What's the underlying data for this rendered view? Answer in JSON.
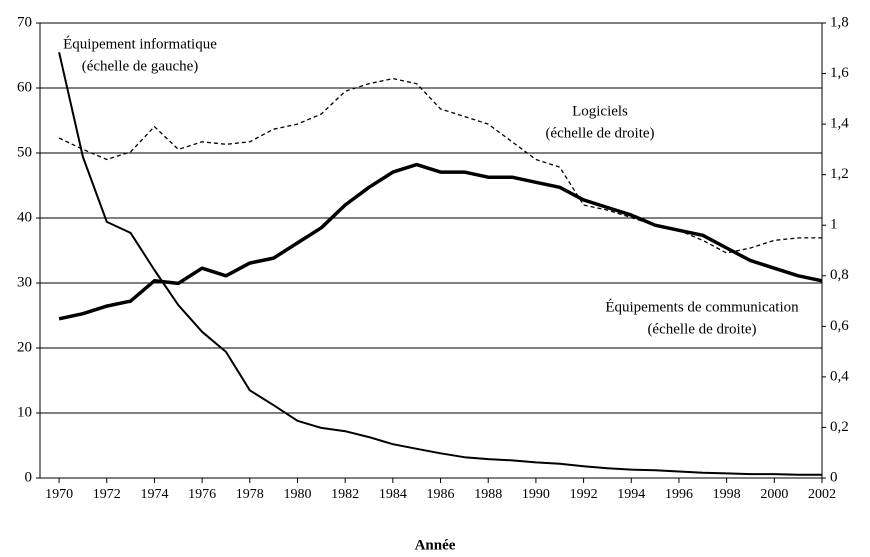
{
  "chart_data": {
    "type": "line",
    "x_label": "Année",
    "x": [
      1970,
      1971,
      1972,
      1973,
      1974,
      1975,
      1976,
      1977,
      1978,
      1979,
      1980,
      1981,
      1982,
      1983,
      1984,
      1985,
      1986,
      1987,
      1988,
      1989,
      1990,
      1991,
      1992,
      1993,
      1994,
      1995,
      1996,
      1997,
      1998,
      1999,
      2000,
      2001,
      2002
    ],
    "xlim": [
      1969.2,
      2002
    ],
    "xticks": [
      1970,
      1972,
      1974,
      1976,
      1978,
      1980,
      1982,
      1984,
      1986,
      1988,
      1990,
      1992,
      1994,
      1996,
      1998,
      2000,
      2002
    ],
    "ylim": [
      0,
      70
    ],
    "yticks": [
      0,
      10,
      20,
      30,
      40,
      50,
      60,
      70
    ],
    "y2lim": [
      0,
      1.8
    ],
    "y2ticks": [
      0,
      {
        "value": 0.2,
        "label": "0,2"
      },
      {
        "value": 0.4,
        "label": "0,4"
      },
      {
        "value": 0.6,
        "label": "0,6"
      },
      {
        "value": 0.8,
        "label": "0,8"
      },
      1,
      {
        "value": 1.2,
        "label": "1,2"
      },
      {
        "value": 1.4,
        "label": "1,4"
      },
      {
        "value": 1.6,
        "label": "1,6"
      },
      {
        "value": 1.8,
        "label": "1,8"
      }
    ],
    "grid": true,
    "series": [
      {
        "name": "Équipement informatique",
        "note": "(échelle de gauche)",
        "color": "#000000",
        "style": "solid",
        "values": [
          65.5,
          49.4,
          39.4,
          37.7,
          32,
          26.6,
          22.5,
          19.4,
          13.5,
          11.2,
          8.8,
          7.7,
          7.2,
          6.3,
          5.2,
          4.5,
          3.8,
          3.2,
          2.9,
          2.7,
          2.4,
          2.2,
          1.8,
          1.5,
          1.3,
          1.2,
          1.0,
          0.8,
          0.7,
          0.6,
          0.6,
          0.5,
          0.5
        ]
      },
      {
        "name": "Logiciels",
        "note": "(échelle de droite)",
        "color": "#000000",
        "style": "dashed",
        "axis": "y2",
        "values": [
          1.345,
          1.3,
          1.26,
          1.29,
          1.39,
          1.3,
          1.33,
          1.32,
          1.33,
          1.38,
          1.4,
          1.44,
          1.53,
          1.56,
          1.58,
          1.56,
          1.46,
          1.43,
          1.4,
          1.33,
          1.26,
          1.23,
          1.08,
          1.06,
          1.03,
          1.0,
          0.98,
          0.94,
          0.89,
          0.91,
          0.94,
          0.95,
          0.95
        ]
      },
      {
        "name": "Équipements de communication",
        "note": "(échelle de droite)",
        "color": "#000000",
        "style": "thick",
        "axis": "y2",
        "values": [
          0.63,
          0.65,
          0.68,
          0.7,
          0.78,
          0.77,
          0.83,
          0.8,
          0.85,
          0.87,
          0.93,
          0.99,
          1.08,
          1.15,
          1.21,
          1.24,
          1.21,
          1.21,
          1.19,
          1.19,
          1.17,
          1.15,
          1.1,
          1.07,
          1.04,
          1.0,
          0.98,
          0.96,
          0.91,
          0.86,
          0.83,
          0.8,
          0.78
        ]
      }
    ]
  }
}
